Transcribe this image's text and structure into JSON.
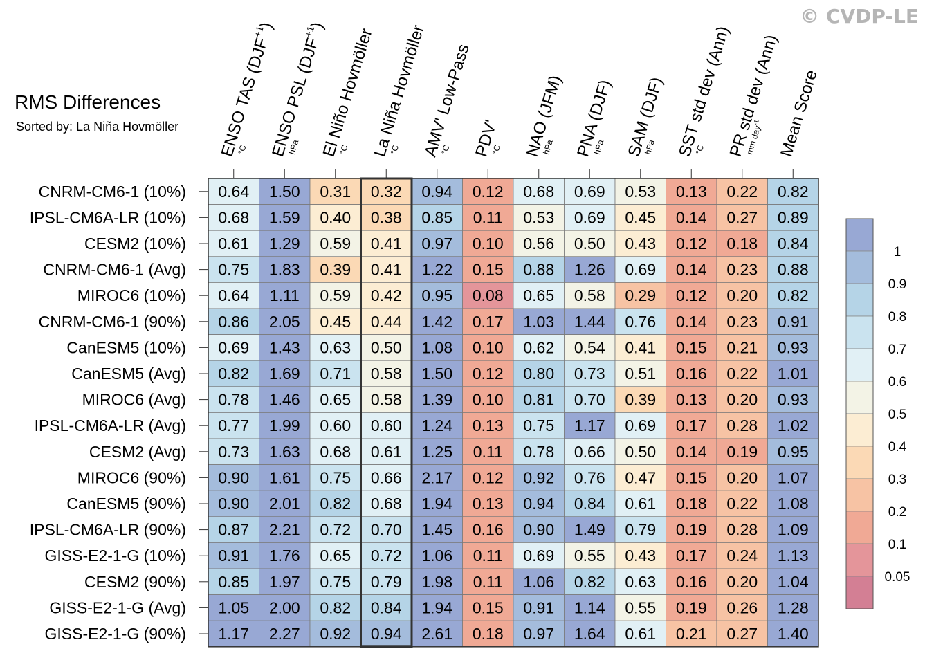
{
  "watermark": "© CVDP-LE",
  "chart_data": {
    "type": "heatmap",
    "title": "RMS Differences",
    "subtitle": "Sorted by: La Niña Hovmöller",
    "highlight_column": 3,
    "columns": [
      {
        "label": "ENSO TAS (DJF",
        "sup": "+1",
        "close": ")",
        "unit": "°C"
      },
      {
        "label": "ENSO PSL (DJF",
        "sup": "+1",
        "close": ")",
        "unit": "hPa"
      },
      {
        "label": "El Niño Hovmöller",
        "sup": "",
        "close": "",
        "unit": "°C"
      },
      {
        "label": "La Niña Hovmöller",
        "sup": "",
        "close": "",
        "unit": "°C"
      },
      {
        "label": "AMV' Low-Pass",
        "sup": "",
        "close": "",
        "unit": "°C"
      },
      {
        "label": "PDV'",
        "sup": "",
        "close": "",
        "unit": "°C"
      },
      {
        "label": "NAO (JFM)",
        "sup": "",
        "close": "",
        "unit": "hPa"
      },
      {
        "label": "PNA (DJF)",
        "sup": "",
        "close": "",
        "unit": "hPa"
      },
      {
        "label": "SAM (DJF)",
        "sup": "",
        "close": "",
        "unit": "hPa"
      },
      {
        "label": "SST std dev (Ann)",
        "sup": "",
        "close": "",
        "unit": "°C"
      },
      {
        "label": "PR std dev (Ann)",
        "sup": "",
        "close": "",
        "unit": "mm day",
        "unit_sup": "-1"
      },
      {
        "label": "Mean Score",
        "sup": "",
        "close": "",
        "unit": ""
      }
    ],
    "rows": [
      "CNRM-CM6-1 (10%)",
      "IPSL-CM6A-LR (10%)",
      "CESM2 (10%)",
      "CNRM-CM6-1 (Avg)",
      "MIROC6 (10%)",
      "CNRM-CM6-1 (90%)",
      "CanESM5 (10%)",
      "CanESM5 (Avg)",
      "MIROC6 (Avg)",
      "IPSL-CM6A-LR (Avg)",
      "CESM2 (Avg)",
      "MIROC6 (90%)",
      "CanESM5 (90%)",
      "IPSL-CM6A-LR (90%)",
      "GISS-E2-1-G (10%)",
      "CESM2 (90%)",
      "GISS-E2-1-G (Avg)",
      "GISS-E2-1-G (90%)"
    ],
    "values": [
      [
        "0.64",
        "1.50",
        "0.31",
        "0.32",
        "0.94",
        "0.12",
        "0.68",
        "0.69",
        "0.53",
        "0.13",
        "0.22",
        "0.82"
      ],
      [
        "0.68",
        "1.59",
        "0.40",
        "0.38",
        "0.85",
        "0.11",
        "0.53",
        "0.69",
        "0.45",
        "0.14",
        "0.27",
        "0.89"
      ],
      [
        "0.61",
        "1.29",
        "0.59",
        "0.41",
        "0.97",
        "0.10",
        "0.56",
        "0.50",
        "0.43",
        "0.12",
        "0.18",
        "0.84"
      ],
      [
        "0.75",
        "1.83",
        "0.39",
        "0.41",
        "1.22",
        "0.15",
        "0.88",
        "1.26",
        "0.69",
        "0.14",
        "0.23",
        "0.88"
      ],
      [
        "0.64",
        "1.11",
        "0.59",
        "0.42",
        "0.95",
        "0.08",
        "0.65",
        "0.58",
        "0.29",
        "0.12",
        "0.20",
        "0.82"
      ],
      [
        "0.86",
        "2.05",
        "0.45",
        "0.44",
        "1.42",
        "0.17",
        "1.03",
        "1.44",
        "0.76",
        "0.14",
        "0.23",
        "0.91"
      ],
      [
        "0.69",
        "1.43",
        "0.63",
        "0.50",
        "1.08",
        "0.10",
        "0.62",
        "0.54",
        "0.41",
        "0.15",
        "0.21",
        "0.93"
      ],
      [
        "0.82",
        "1.69",
        "0.71",
        "0.58",
        "1.50",
        "0.12",
        "0.80",
        "0.73",
        "0.51",
        "0.16",
        "0.22",
        "1.01"
      ],
      [
        "0.78",
        "1.46",
        "0.65",
        "0.58",
        "1.39",
        "0.10",
        "0.81",
        "0.70",
        "0.39",
        "0.13",
        "0.20",
        "0.93"
      ],
      [
        "0.77",
        "1.99",
        "0.60",
        "0.60",
        "1.24",
        "0.13",
        "0.75",
        "1.17",
        "0.69",
        "0.17",
        "0.28",
        "1.02"
      ],
      [
        "0.73",
        "1.63",
        "0.68",
        "0.61",
        "1.25",
        "0.11",
        "0.78",
        "0.66",
        "0.50",
        "0.14",
        "0.19",
        "0.95"
      ],
      [
        "0.90",
        "1.61",
        "0.75",
        "0.66",
        "2.17",
        "0.12",
        "0.92",
        "0.76",
        "0.47",
        "0.15",
        "0.20",
        "1.07"
      ],
      [
        "0.90",
        "2.01",
        "0.82",
        "0.68",
        "1.94",
        "0.13",
        "0.94",
        "0.84",
        "0.61",
        "0.18",
        "0.22",
        "1.08"
      ],
      [
        "0.87",
        "2.21",
        "0.72",
        "0.70",
        "1.45",
        "0.16",
        "0.90",
        "1.49",
        "0.79",
        "0.19",
        "0.28",
        "1.09"
      ],
      [
        "0.91",
        "1.76",
        "0.65",
        "0.72",
        "1.06",
        "0.11",
        "0.69",
        "0.55",
        "0.43",
        "0.17",
        "0.24",
        "1.13"
      ],
      [
        "0.85",
        "1.97",
        "0.75",
        "0.79",
        "1.98",
        "0.11",
        "1.06",
        "0.82",
        "0.63",
        "0.16",
        "0.20",
        "1.04"
      ],
      [
        "1.05",
        "2.00",
        "0.82",
        "0.84",
        "1.94",
        "0.15",
        "0.91",
        "1.14",
        "0.55",
        "0.19",
        "0.26",
        "1.28"
      ],
      [
        "1.17",
        "2.27",
        "0.92",
        "0.94",
        "2.61",
        "0.18",
        "0.97",
        "1.64",
        "0.61",
        "0.21",
        "0.27",
        "1.40"
      ]
    ],
    "colorbar": {
      "tick_labels": [
        "1",
        "0.9",
        "0.8",
        "0.7",
        "0.6",
        "0.5",
        "0.4",
        "0.3",
        "0.2",
        "0.1",
        "0.05"
      ],
      "thresholds": [
        0.05,
        0.1,
        0.2,
        0.3,
        0.4,
        0.5,
        0.6,
        0.7,
        0.8,
        0.9,
        1.0
      ],
      "colors": [
        "#d37f94",
        "#e4959a",
        "#f0a995",
        "#f7c3a4",
        "#fbd9b5",
        "#fcedd3",
        "#f3f3e6",
        "#e1f0f5",
        "#cae3ef",
        "#b5d4e7",
        "#a4bcdc",
        "#98a8d4"
      ]
    }
  }
}
